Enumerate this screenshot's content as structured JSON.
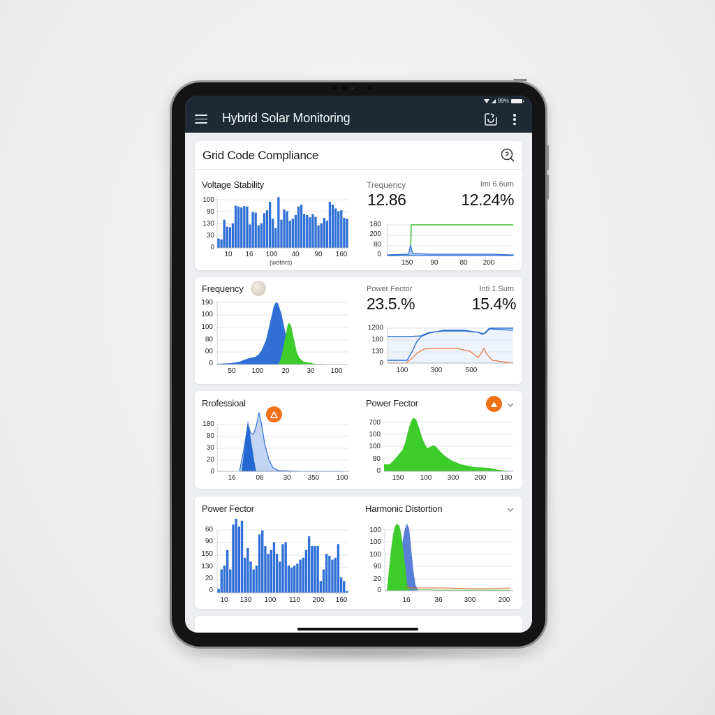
{
  "status_bar": {
    "battery": "99%"
  },
  "app_bar": {
    "title": "Hybrid Solar Monitoring",
    "icons": [
      "menu-icon",
      "sync-icon",
      "more-vertical-icon"
    ]
  },
  "section": {
    "title": "Grid Code Compliance",
    "action_icon": "search-icon"
  },
  "cards": [
    {
      "left": {
        "title": "Voltage Stability",
        "y_ticks": [
          "100",
          "90",
          "130",
          "30",
          "0"
        ],
        "x_ticks": [
          "10",
          "16",
          "100",
          "40",
          "90",
          "160"
        ],
        "x_caption": "(wotnrs)"
      },
      "right": {
        "label_left": "Trequency",
        "value_left": "12.86",
        "label_right": "Imi 6.6um",
        "value_right": "12.24%",
        "y_ticks": [
          "180",
          "200",
          "80",
          "0"
        ],
        "x_ticks": [
          "150",
          "90",
          "80",
          "200"
        ]
      }
    },
    {
      "left": {
        "title": "Frequency",
        "y_ticks": [
          "190",
          "100",
          "100",
          "80",
          "00",
          "0"
        ],
        "x_ticks": [
          "50",
          "100",
          "20",
          "30",
          "100"
        ]
      },
      "right": {
        "label_left": "Power Fector",
        "value_left": "23.5.%",
        "label_right": "Inti 1.Sum",
        "value_right": "15.4%",
        "y_ticks": [
          "1200",
          "180",
          "130",
          "0"
        ],
        "x_ticks": [
          "100",
          "300",
          "500"
        ]
      }
    },
    {
      "left": {
        "title": "Rrofessioal",
        "badge_icon": "warning-icon",
        "y_ticks": [
          "180",
          "80",
          "30",
          "20",
          "0"
        ],
        "x_ticks": [
          "16",
          "06",
          "30",
          "350",
          "100"
        ]
      },
      "right": {
        "title": "Power Fector",
        "badge_icon": "warning-icon",
        "chevron_icon": "chevron-down-icon",
        "y_ticks": [
          "700",
          "100",
          "100",
          "80",
          "0"
        ],
        "x_ticks": [
          "150",
          "100",
          "300",
          "200",
          "180"
        ]
      }
    },
    {
      "left": {
        "title": "Power Fector",
        "y_ticks": [
          "60",
          "90",
          "150",
          "130",
          "20",
          "0"
        ],
        "x_ticks": [
          "10",
          "130",
          "100",
          "110",
          "200",
          "160"
        ]
      },
      "right": {
        "title": "Harmonic Distortion",
        "chevron_icon": "chevron-down-icon",
        "y_ticks": [
          "100",
          "100",
          "100",
          "90",
          "20",
          "0"
        ],
        "x_ticks": [
          "16",
          "36",
          "300",
          "200"
        ]
      }
    }
  ],
  "colors": {
    "app_bar": "#1f2936",
    "blue": "#2f6fd6",
    "green": "#3ecb2c",
    "orange": "#f07115",
    "line_orange": "#e8743b",
    "card_bg": "#ffffff",
    "screen_bg": "#eceef1"
  },
  "chart_data": [
    {
      "type": "bar",
      "title": "Voltage Stability",
      "xlabel": "(wotnrs)",
      "ylabel": "",
      "x_ticks": [
        "10",
        "16",
        "100",
        "40",
        "90",
        "160"
      ],
      "y_ticks": [
        "0",
        "30",
        "130",
        "90",
        "100"
      ],
      "values": [
        20,
        18,
        60,
        45,
        44,
        52,
        90,
        88,
        86,
        89,
        88,
        50,
        76,
        75,
        48,
        52,
        74,
        80,
        98,
        62,
        42,
        108,
        60,
        82,
        78,
        58,
        62,
        70,
        88,
        92,
        72,
        70,
        65,
        72,
        66,
        48,
        52,
        64,
        58,
        98,
        92,
        84,
        78,
        80,
        64,
        62
      ]
    },
    {
      "type": "line",
      "title": "Trequency",
      "x_ticks": [
        "150",
        "90",
        "80",
        "200"
      ],
      "y_ticks": [
        "0",
        "80",
        "200",
        "180"
      ],
      "series": [
        {
          "name": "green",
          "values": [
            0,
            0,
            0,
            0,
            180,
            180,
            180,
            180,
            180,
            180,
            180,
            180
          ]
        },
        {
          "name": "blue",
          "values": [
            5,
            6,
            7,
            8,
            60,
            12,
            10,
            9,
            8,
            8,
            6,
            2
          ]
        }
      ]
    },
    {
      "type": "area",
      "title": "Frequency",
      "x_ticks": [
        "50",
        "100",
        "20",
        "30",
        "100"
      ],
      "y_ticks": [
        "0",
        "00",
        "80",
        "100",
        "100",
        "190"
      ],
      "series": [
        {
          "name": "blue",
          "values": [
            0,
            0,
            3,
            12,
            22,
            55,
            185,
            60,
            5,
            0,
            0,
            0
          ]
        },
        {
          "name": "green",
          "values": [
            0,
            0,
            0,
            0,
            0,
            0,
            8,
            60,
            115,
            30,
            3,
            0
          ]
        }
      ]
    },
    {
      "type": "line",
      "title": "Power Fector",
      "x_ticks": [
        "100",
        "300",
        "500"
      ],
      "y_ticks": [
        "0",
        "130",
        "180",
        "1200"
      ],
      "series": [
        {
          "name": "blue-upper",
          "values": [
            1150,
            1150,
            1160,
            1200,
            1220,
            1220,
            1200,
            1180,
            1280,
            1280,
            1270
          ]
        },
        {
          "name": "blue-lower",
          "values": [
            30,
            30,
            40,
            900,
            1180,
            1220,
            1210,
            1170,
            1290,
            1290,
            1280
          ]
        },
        {
          "name": "orange",
          "values": [
            0,
            0,
            10,
            500,
            520,
            520,
            510,
            420,
            470,
            80,
            0
          ]
        }
      ]
    },
    {
      "type": "area",
      "title": "Rrofessioal",
      "x_ticks": [
        "16",
        "06",
        "30",
        "350",
        "100"
      ],
      "y_ticks": [
        "0",
        "20",
        "30",
        "80",
        "180"
      ],
      "series": [
        {
          "name": "blue-dark",
          "values": [
            0,
            0,
            0,
            180,
            0,
            0,
            0,
            0,
            0
          ]
        },
        {
          "name": "blue-light",
          "values": [
            0,
            0,
            0,
            130,
            210,
            20,
            0,
            0,
            0
          ]
        }
      ]
    },
    {
      "type": "area",
      "title": "Power Fector",
      "x_ticks": [
        "150",
        "100",
        "300",
        "200",
        "180"
      ],
      "y_ticks": [
        "0",
        "80",
        "100",
        "100",
        "700"
      ],
      "values": [
        30,
        40,
        100,
        220,
        160,
        120,
        130,
        80,
        40,
        20,
        10,
        8,
        5,
        0
      ]
    },
    {
      "type": "bar",
      "title": "Power Fector",
      "x_ticks": [
        "10",
        "130",
        "100",
        "110",
        "200",
        "160"
      ],
      "y_ticks": [
        "0",
        "20",
        "130",
        "150",
        "90",
        "60"
      ],
      "values": [
        10,
        60,
        70,
        110,
        60,
        175,
        190,
        170,
        185,
        90,
        115,
        80,
        60,
        70,
        150,
        160,
        120,
        100,
        110,
        130,
        100,
        80,
        125,
        130,
        70,
        65,
        70,
        75,
        85,
        90,
        110,
        145,
        120,
        120,
        120,
        30,
        60,
        100,
        95,
        85,
        90,
        125,
        40,
        30,
        5
      ]
    },
    {
      "type": "area",
      "title": "Harmonic Distortion",
      "x_ticks": [
        "16",
        "36",
        "300",
        "200"
      ],
      "y_ticks": [
        "0",
        "20",
        "90",
        "100",
        "100",
        "100"
      ],
      "series": [
        {
          "name": "green",
          "values": [
            0,
            140,
            60,
            0,
            0,
            0,
            0,
            0,
            0
          ]
        },
        {
          "name": "blue",
          "values": [
            0,
            0,
            130,
            5,
            3,
            3,
            3,
            3,
            3
          ]
        },
        {
          "name": "orange",
          "values": [
            0,
            0,
            0,
            4,
            4,
            4,
            4,
            4,
            5
          ]
        }
      ]
    }
  ]
}
